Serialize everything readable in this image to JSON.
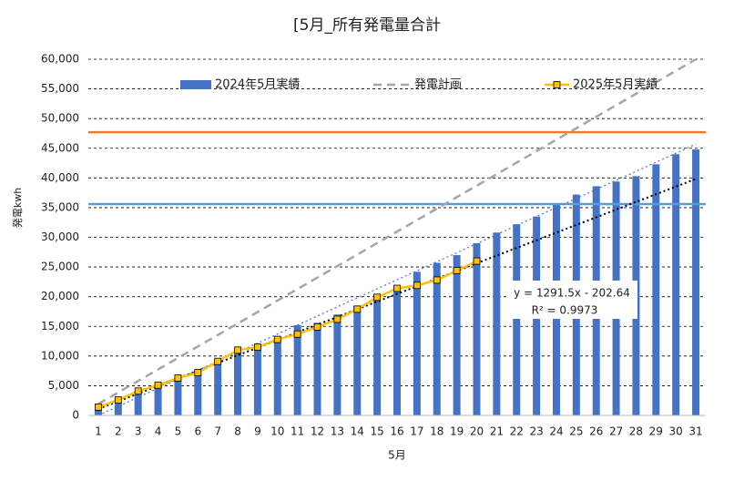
{
  "chart_data": {
    "type": "bar",
    "title": "[5月_所有発電量合計",
    "x_label": "5月",
    "y_label": "発電kwh",
    "categories": [
      "1",
      "2",
      "3",
      "4",
      "5",
      "6",
      "7",
      "8",
      "9",
      "10",
      "11",
      "12",
      "13",
      "14",
      "15",
      "16",
      "17",
      "18",
      "19",
      "20",
      "21",
      "22",
      "23",
      "24",
      "25",
      "26",
      "27",
      "28",
      "29",
      "30",
      "31"
    ],
    "series": [
      {
        "name": "2024年5月実績",
        "type": "bar",
        "color": "#4472c4",
        "values": [
          1000,
          2400,
          3700,
          5000,
          6300,
          7400,
          9000,
          10500,
          11800,
          13000,
          15200,
          15600,
          17000,
          18500,
          20300,
          21500,
          24200,
          25700,
          27000,
          29000,
          30800,
          32200,
          33500,
          35500,
          37200,
          38600,
          39400,
          40300,
          42300,
          44000,
          44800
        ]
      },
      {
        "name": "発電計画",
        "type": "dashed-line",
        "color": "#a5a5a5",
        "values": [
          1935,
          3870,
          5805,
          7740,
          9675,
          11610,
          13545,
          15480,
          17415,
          19350,
          21285,
          23220,
          25155,
          27090,
          29025,
          30960,
          32895,
          34830,
          36765,
          38700,
          40635,
          42570,
          44505,
          46440,
          48375,
          50310,
          52245,
          54180,
          56115,
          58050,
          59985
        ]
      },
      {
        "name": "2025年5月実績",
        "type": "marker-line",
        "color": "#ffc000",
        "values": [
          1400,
          2600,
          4100,
          5100,
          6300,
          7200,
          9100,
          11000,
          11500,
          12800,
          13700,
          14900,
          16200,
          17900,
          19900,
          21400,
          21900,
          22800,
          24400,
          26000,
          null,
          null,
          null,
          null,
          null,
          null,
          null,
          null,
          null,
          null,
          null
        ]
      }
    ],
    "trendlines": [
      {
        "color": "#4472c4",
        "slope": 1523,
        "intercept": -1523
      },
      {
        "color": "#000000",
        "slope": 1291.5,
        "intercept": -202.64,
        "equation": "y = 1291.5x - 202.64",
        "r2": "R² = 0.9973"
      }
    ],
    "reference_lines": [
      {
        "value": 47700,
        "color": "#ed7d31"
      },
      {
        "value": 35600,
        "color": "#5b9bd5"
      }
    ],
    "ylim": [
      0,
      60000
    ],
    "yticks": [
      0,
      {
        "value": 5000,
        "label": "5,000"
      },
      {
        "value": 10000,
        "label": "10,000"
      },
      {
        "value": 15000,
        "label": "15,000"
      },
      {
        "value": 20000,
        "label": "20,000"
      },
      {
        "value": 25000,
        "label": "25,000"
      },
      {
        "value": 30000,
        "label": "30,000"
      },
      {
        "value": 35000,
        "label": "35,000"
      },
      {
        "value": 40000,
        "label": "40,000"
      },
      {
        "value": 45000,
        "label": "45,000"
      },
      {
        "value": 50000,
        "label": "50,000"
      },
      {
        "value": 55000,
        "label": "55,000"
      },
      {
        "value": 60000,
        "label": "60,000"
      }
    ],
    "grid": true
  }
}
